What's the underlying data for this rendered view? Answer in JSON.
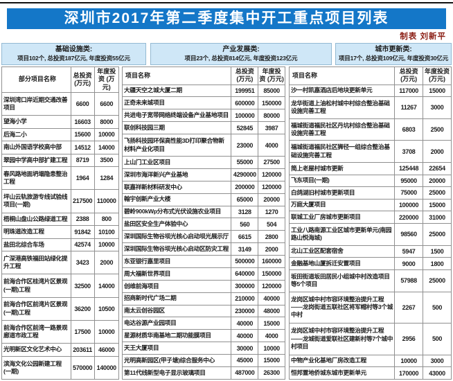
{
  "title": "深圳市2017年第二季度集中开工重点项目列表",
  "credit": "制表 刘新平",
  "colors": {
    "title_bg": "#1477c8",
    "box_bg": "#cfe7f7",
    "box_border": "#93b9d2",
    "table_border": "#8f8f8f",
    "text": "#1b1b1b",
    "credit": "#8b1e14"
  },
  "columns": [
    {
      "category": "基础设施类:",
      "summary": "项目102个, 总投资187亿元, 年度投资55亿元",
      "headers": {
        "name": "部分项目名称",
        "total": "总投资 (万元)",
        "annual": "年度投资 (万元)"
      },
      "rows": [
        [
          "深圳湾口岸近期交通改善项目",
          "6600",
          "6600"
        ],
        [
          "望海小学",
          "16603",
          "8000"
        ],
        [
          "后海二小",
          "15600",
          "10000"
        ],
        [
          "南山外国语学校高中部",
          "14512",
          "14000"
        ],
        [
          "翠园中学高中部扩建工程",
          "8719",
          "3500"
        ],
        [
          "春风路地面坍塌隐患整治工程",
          "1964",
          "1284"
        ],
        [
          "坪山云轨旅游专线试验线项目(一期)",
          "217500",
          "110000"
        ],
        [
          "梧桐山盘山公路绿道工程",
          "2388",
          "800"
        ],
        [
          "明珠道改造工程",
          "91842",
          "10100"
        ],
        [
          "盐田北综合车场",
          "42574",
          "10000"
        ],
        [
          "广深港高铁福田站绿化提升工程",
          "3423",
          "2000"
        ],
        [
          "前海合作区桂湾片区景观(一期)工程",
          "32500",
          "14000"
        ],
        [
          "前海合作区前湾片区景观(一期)工程",
          "36200",
          "10500"
        ],
        [
          "前海合作区前湾一路景观廊道市政工程",
          "17500",
          "10000"
        ],
        [
          "光明新区文化艺术中心",
          "203611",
          "46000"
        ],
        [
          "滨海文化公园新建工程(一期)",
          "570000",
          "140000"
        ]
      ]
    },
    {
      "category": "产业发展类:",
      "summary": "项目23个, 总投资814亿元, 年度投资123亿元",
      "headers": {
        "name": "项目名称",
        "total": "总投资 (万元)",
        "annual": "年度投资 (万元)"
      },
      "rows": [
        [
          "大疆天空之城大厦二期",
          "199951",
          "85000"
        ],
        [
          "正奇未来城项目",
          "600000",
          "150000"
        ],
        [
          "共进电子宽带网络终端设备产业基地项目",
          "100000",
          "80000"
        ],
        [
          "联创科技园三期",
          "52845",
          "3987"
        ],
        [
          "飞扬科技园环保高性能3D打印聚合物新材料产业化项目",
          "23000",
          "4000"
        ],
        [
          "上山门工业区项目",
          "55000",
          "27500"
        ],
        [
          "深圳市海洋新兴产业基地",
          "4290000",
          "120000"
        ],
        [
          "联嘉祥新材料研发中心",
          "200000",
          "120000"
        ],
        [
          "翰宇创新产业大楼",
          "65000",
          "20000"
        ],
        [
          "碧岭900kWp分布式光伏设施农业项目",
          "3128",
          "1270"
        ],
        [
          "盐田区安全生产体验中心",
          "560",
          "504"
        ],
        [
          "深圳国际生物谷坝光核心启动坝光展示厅",
          "6615",
          "2800"
        ],
        [
          "深圳国际生物谷坝光核心启动区防灾工程",
          "3149",
          "2000"
        ],
        [
          "东亚银行嘉里项目",
          "500000",
          "160000"
        ],
        [
          "周大福新世界项目",
          "640000",
          "150000"
        ],
        [
          "创维前海项目",
          "300000",
          "120000"
        ],
        [
          "招商新时代广场二期",
          "210000",
          "40000"
        ],
        [
          "南太云创谷园区",
          "230000",
          "48000"
        ],
        [
          "电达谷源产业园项目",
          "40000",
          "15000"
        ],
        [
          "星源材质华南基地二期功能膜项目",
          "40000",
          "4000"
        ],
        [
          "天王大厦项目",
          "30000",
          "10000"
        ],
        [
          "光明高新园区(甲子塘)综合服务中心",
          "45000",
          "15000"
        ],
        [
          "第11代线新型电子显示玻璃项目",
          "487000",
          "26300"
        ]
      ]
    },
    {
      "category": "城市更新类:",
      "summary": "项目17个, 总投资109亿元, 年度投资30亿元",
      "headers": {
        "name": "项目名称",
        "total": "总投资 (万元)",
        "annual": "年度投资 (万元)"
      },
      "rows": [
        [
          "沙一村凯嘉酒店后地块更新单元",
          "117000",
          "15000"
        ],
        [
          "龙华街道上油松村城中村综合整治基础设施完善工程",
          "11267",
          "3000"
        ],
        [
          "福城街道福民社区丹坑村综合整治基础设施完善工程",
          "6803",
          "2500"
        ],
        [
          "福城街道福民社区狮径一组综合整治基础设施完善工程",
          "3708",
          "2000"
        ],
        [
          "简上老屋村城市更新",
          "125448",
          "22654"
        ],
        [
          "飞东项目(一期)",
          "95000",
          "20000"
        ],
        [
          "白鸽湖旧村城市更新项目",
          "75000",
          "25000"
        ],
        [
          "万庭大厦项目",
          "100000",
          "15000"
        ],
        [
          "联城工业厂房城市更新项目",
          "220000",
          "31000"
        ],
        [
          "工业八路南源工业区城市更新单元(南园路山悦海城)",
          "98560",
          "25000"
        ],
        [
          "北山工业区配套宿舍",
          "5947",
          "1500"
        ],
        [
          "金融基地山厦拆迁安置项目",
          "9000",
          "1800"
        ],
        [
          "坂田街道坂田居民小组城中村改造项目等5个项目",
          "57988",
          "25000"
        ],
        [
          "龙岗区城中村市容环境整治提升工程——龙岗街道五联社区将军帽村等3个城中村",
          "2267",
          "500"
        ],
        [
          "龙岗区城中村市容环境整治提升工程——龙城街道爱联社区建新村等7个城中村项目",
          "2956",
          "500"
        ],
        [
          "中物产业化基地厂房改造工程",
          "10000",
          "3000"
        ],
        [
          "恒邦置地侨城东城市更新单元",
          "170000",
          "43000"
        ]
      ]
    }
  ]
}
